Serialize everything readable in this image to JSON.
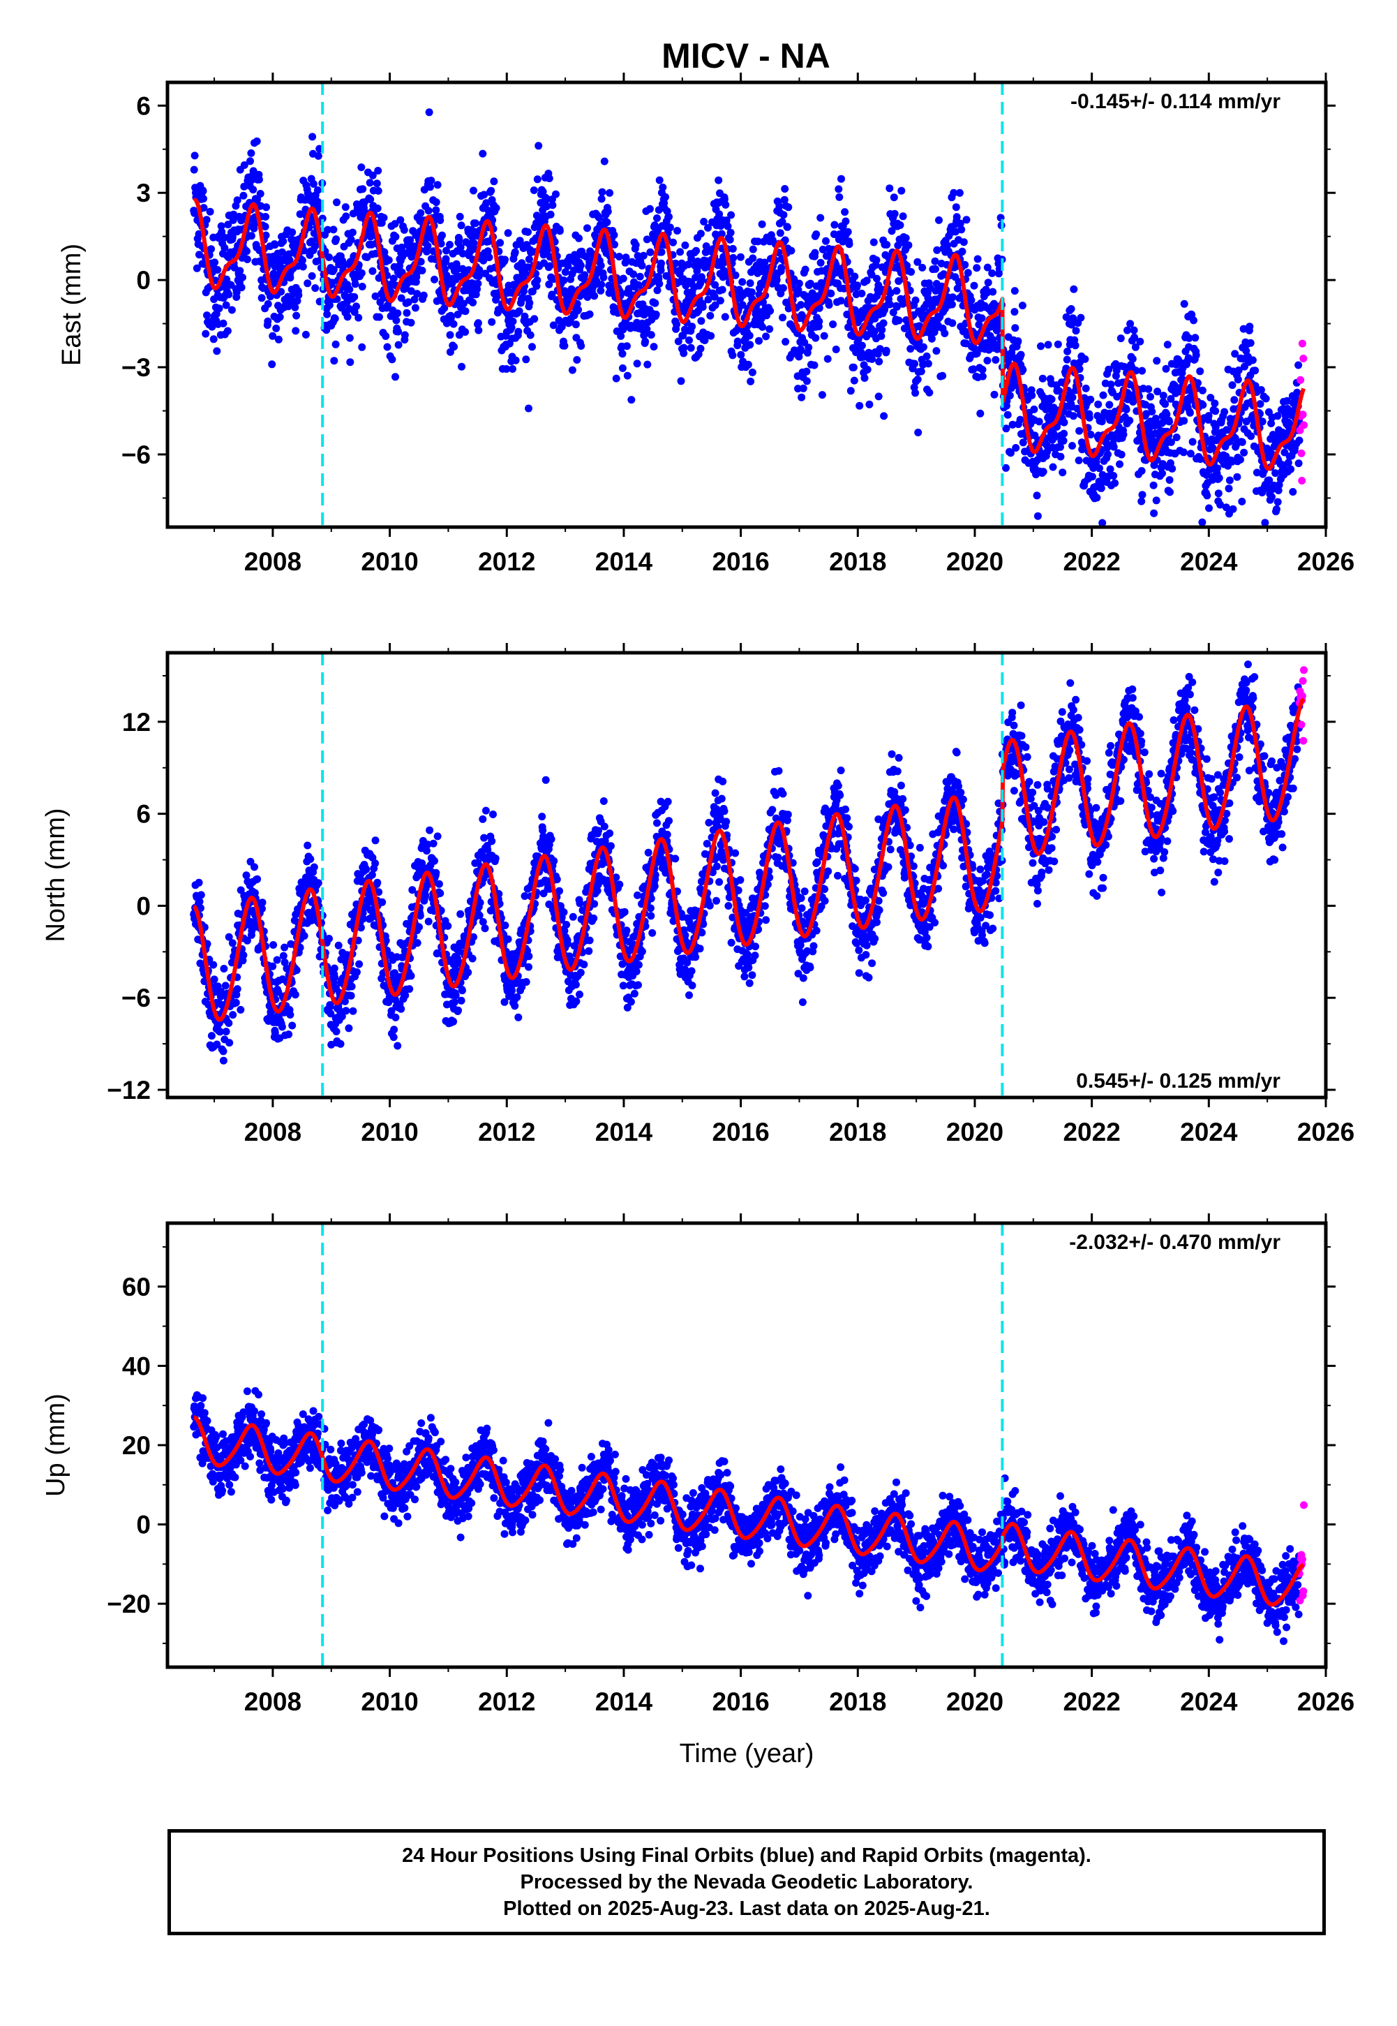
{
  "title": "MICV - NA",
  "footer": {
    "line1": "24 Hour Positions Using Final Orbits (blue) and Rapid Orbits (magenta).",
    "line2": "Processed by the Nevada Geodetic Laboratory.",
    "line3": "Plotted on 2025-Aug-23. Last data on 2025-Aug-21."
  },
  "colors": {
    "final": "#0000ff",
    "rapid": "#ff00ff",
    "model": "#ff0000",
    "step": "#00e5ee"
  },
  "chart_data": [
    {
      "type": "scatter",
      "ylabel": "East (mm)",
      "rate": "-0.145+/- 0.114 mm/yr",
      "xlim": [
        2006.2,
        2026.0
      ],
      "ylim": [
        -8.5,
        6.8
      ],
      "yticks": [
        6,
        3,
        0,
        -3,
        -6
      ],
      "ytick_labels": [
        "6",
        "3",
        "0",
        "−3",
        "−6"
      ],
      "xticks": [
        2008,
        2010,
        2012,
        2014,
        2016,
        2018,
        2020,
        2022,
        2024,
        2026
      ],
      "xtick_labels": [
        "2008",
        "2010",
        "2012",
        "2014",
        "2016",
        "2018",
        "2020",
        "2022",
        "2024",
        "2026"
      ],
      "steps": [
        2008.85,
        2020.47
      ],
      "model": {
        "offset0": 1.1,
        "rate": -0.145,
        "annual": 1.25,
        "semiannual": 0.5,
        "step_jumps": [
          0,
          -3.6
        ],
        "start": 2006.65,
        "end": 2025.62
      },
      "scatter": 1.1,
      "series": [
        {
          "name": "Final Orbits",
          "x_range": [
            2006.65,
            2025.55
          ],
          "color": "#0000ff"
        },
        {
          "name": "Rapid Orbits",
          "x_range": [
            2025.55,
            2025.63
          ],
          "color": "#ff00ff"
        }
      ]
    },
    {
      "type": "scatter",
      "ylabel": "North (mm)",
      "rate": "0.545+/- 0.125 mm/yr",
      "xlim": [
        2006.2,
        2026.0
      ],
      "ylim": [
        -12.5,
        16.5
      ],
      "yticks": [
        12,
        6,
        0,
        -6,
        -12
      ],
      "ytick_labels": [
        "12",
        "6",
        "0",
        "−6",
        "−12"
      ],
      "xticks": [
        2008,
        2010,
        2012,
        2014,
        2016,
        2018,
        2020,
        2022,
        2024,
        2026
      ],
      "xtick_labels": [
        "2008",
        "2010",
        "2012",
        "2014",
        "2016",
        "2018",
        "2020",
        "2022",
        "2024",
        "2026"
      ],
      "steps": [
        2008.85,
        2020.47
      ],
      "model": {
        "offset0": -4.0,
        "rate": 0.545,
        "annual": 3.8,
        "semiannual": 0.3,
        "step_jumps": [
          0,
          3.2
        ],
        "start": 2006.65,
        "end": 2025.62
      },
      "scatter": 1.4,
      "series": [
        {
          "name": "Final Orbits",
          "x_range": [
            2006.65,
            2025.55
          ],
          "color": "#0000ff"
        },
        {
          "name": "Rapid Orbits",
          "x_range": [
            2025.55,
            2025.63
          ],
          "color": "#ff00ff"
        }
      ]
    },
    {
      "type": "scatter",
      "ylabel": "Up (mm)",
      "rate": "-2.032+/- 0.470 mm/yr",
      "xlim": [
        2006.2,
        2026.0
      ],
      "ylim": [
        -36,
        76
      ],
      "yticks": [
        60,
        40,
        20,
        0,
        -20
      ],
      "ytick_labels": [
        "60",
        "40",
        "20",
        "0",
        "−20"
      ],
      "xticks": [
        2008,
        2010,
        2012,
        2014,
        2016,
        2018,
        2020,
        2022,
        2024,
        2026
      ],
      "xtick_labels": [
        "2008",
        "2010",
        "2012",
        "2014",
        "2016",
        "2018",
        "2020",
        "2022",
        "2024",
        "2026"
      ],
      "xlabel": "Time (year)",
      "steps": [
        2008.85,
        2020.47
      ],
      "model": {
        "offset0": 21,
        "rate": -2.032,
        "annual": 5.5,
        "semiannual": 0.8,
        "step_jumps": [
          0,
          1.5
        ],
        "start": 2006.65,
        "end": 2025.62
      },
      "scatter": 3.8,
      "series": [
        {
          "name": "Final Orbits",
          "x_range": [
            2006.65,
            2025.55
          ],
          "color": "#0000ff"
        },
        {
          "name": "Rapid Orbits",
          "x_range": [
            2025.55,
            2025.63
          ],
          "color": "#ff00ff"
        }
      ]
    }
  ]
}
